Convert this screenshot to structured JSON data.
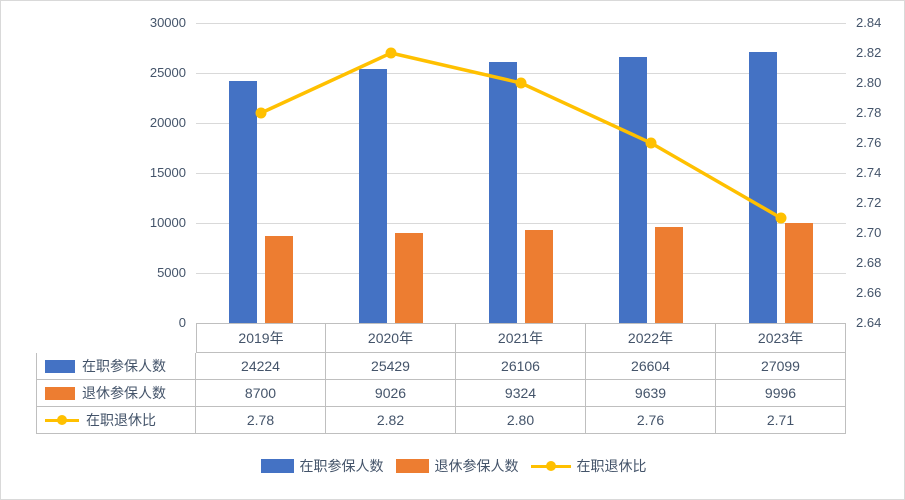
{
  "chart_data": {
    "type": "bar+line",
    "title": "",
    "categories": [
      "2019年",
      "2020年",
      "2021年",
      "2022年",
      "2023年"
    ],
    "series": [
      {
        "name": "在职参保人数",
        "type": "bar",
        "axis": "left",
        "color": "#4472c4",
        "values": [
          24224,
          25429,
          26106,
          26604,
          27099
        ],
        "display_values": [
          "24224",
          "25429",
          "26106",
          "26604",
          "27099"
        ]
      },
      {
        "name": "退休参保人数",
        "type": "bar",
        "axis": "left",
        "color": "#ed7d31",
        "values": [
          8700,
          9026,
          9324,
          9639,
          9996
        ],
        "display_values": [
          "8700",
          "9026",
          "9324",
          "9639",
          "9996"
        ]
      },
      {
        "name": "在职退休比",
        "type": "line",
        "axis": "right",
        "color": "#ffc000",
        "values": [
          2.78,
          2.82,
          2.8,
          2.76,
          2.71
        ],
        "display_values": [
          "2.78",
          "2.82",
          "2.80",
          "2.76",
          "2.71"
        ]
      }
    ],
    "left_axis": {
      "min": 0,
      "max": 30000,
      "step": 5000,
      "tick_labels": [
        "0",
        "5000",
        "10000",
        "15000",
        "20000",
        "25000",
        "30000"
      ]
    },
    "right_axis": {
      "min": 2.64,
      "max": 2.84,
      "step": 0.02,
      "tick_labels": [
        "2.64",
        "2.66",
        "2.68",
        "2.70",
        "2.72",
        "2.74",
        "2.76",
        "2.78",
        "2.80",
        "2.82",
        "2.84"
      ]
    },
    "grid": true,
    "legend_position": "bottom",
    "data_table": true
  }
}
